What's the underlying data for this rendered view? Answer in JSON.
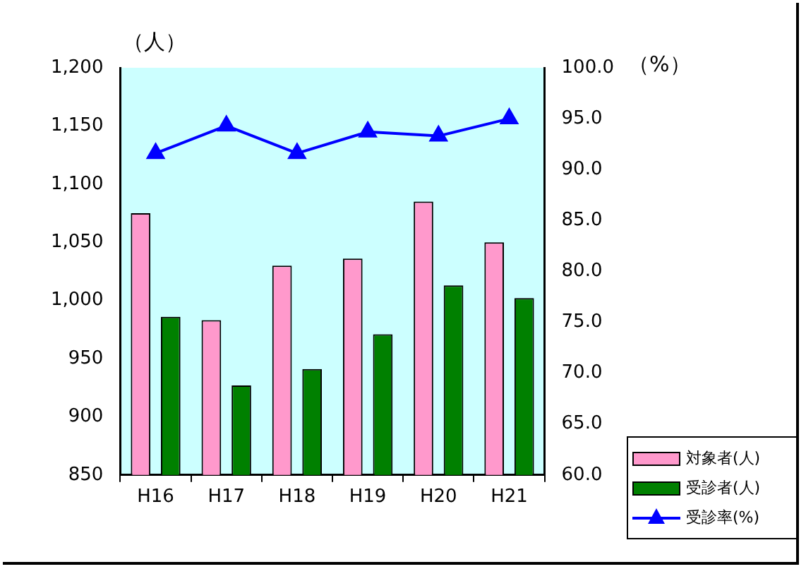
{
  "chart_data": {
    "type": "bar",
    "ylabel": "（人）",
    "y2label": "（%）",
    "categories": [
      "H16",
      "H17",
      "H18",
      "H19",
      "H20",
      "H21"
    ],
    "series": [
      {
        "name": "対象者(人)",
        "color": "#ff99cc",
        "values": [
          1075,
          983,
          1030,
          1036,
          1085,
          1050
        ]
      },
      {
        "name": "受診者(人)",
        "color": "#008000",
        "values": [
          986,
          927,
          941,
          971,
          1013,
          1002
        ]
      },
      {
        "name": "受診率(%)",
        "type": "line",
        "axis": "y2",
        "color": "#0000ff",
        "marker": "triangle",
        "values": [
          91.6,
          94.3,
          91.6,
          93.7,
          93.3,
          95.0
        ]
      }
    ],
    "ylim": [
      850,
      1200
    ],
    "yticks": [
      {
        "value": 850,
        "label": "850"
      },
      {
        "value": 900,
        "label": "900"
      },
      {
        "value": 950,
        "label": "950"
      },
      {
        "value": 1000,
        "label": "1,000"
      },
      {
        "value": 1050,
        "label": "1,050"
      },
      {
        "value": 1100,
        "label": "1,100"
      },
      {
        "value": 1150,
        "label": "1,150"
      },
      {
        "value": 1200,
        "label": "1,200"
      }
    ],
    "y2lim": [
      60,
      100
    ],
    "y2ticks": [
      {
        "value": 60,
        "label": "60.0"
      },
      {
        "value": 65,
        "label": "65.0"
      },
      {
        "value": 70,
        "label": "70.0"
      },
      {
        "value": 75,
        "label": "75.0"
      },
      {
        "value": 80,
        "label": "80.0"
      },
      {
        "value": 85,
        "label": "85.0"
      },
      {
        "value": 90,
        "label": "90.0"
      },
      {
        "value": 95,
        "label": "95.0"
      },
      {
        "value": 100,
        "label": "100.0"
      }
    ],
    "grid": false,
    "legend": "bottom right"
  }
}
